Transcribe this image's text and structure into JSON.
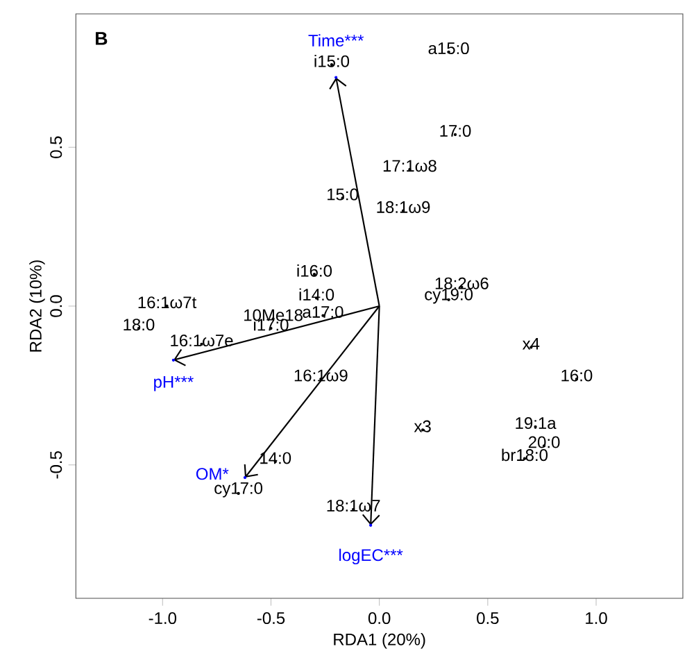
{
  "chart_data": {
    "type": "scatter",
    "title": "B",
    "xlabel": "RDA1 (20%)",
    "ylabel": "RDA2 (10%)",
    "xlim": [
      -1.4,
      1.4
    ],
    "ylim": [
      -0.92,
      0.92
    ],
    "xticks": [
      {
        "value": -1,
        "label": "-1.0"
      },
      {
        "value": -0.5,
        "label": "-0.5"
      },
      {
        "value": 0,
        "label": "0.0"
      },
      {
        "value": 0.5,
        "label": "0.5"
      },
      {
        "value": 1,
        "label": "1.0"
      }
    ],
    "yticks": [
      {
        "value": -0.5,
        "label": "-0.5"
      },
      {
        "value": 0,
        "label": "0.0"
      },
      {
        "value": 0.5,
        "label": "0.5"
      }
    ],
    "grid": false,
    "marker": "circle",
    "series": [
      {
        "color": "#000000",
        "x": [
          -0.22,
          0.32,
          0.35,
          0.14,
          -0.17,
          0.11,
          -0.3,
          -0.29,
          0.38,
          0.32,
          -0.98,
          -0.26,
          -0.49,
          -0.5,
          -1.11,
          -0.82,
          -0.27,
          0.7,
          0.91,
          0.2,
          0.72,
          0.76,
          0.67,
          -0.48,
          -0.65,
          -0.12
        ],
        "values": [
          0.76,
          0.8,
          0.54,
          0.43,
          0.34,
          0.3,
          0.1,
          0.025,
          0.06,
          0.02,
          0.0,
          -0.03,
          -0.04,
          -0.07,
          -0.07,
          -0.12,
          -0.23,
          -0.13,
          -0.23,
          -0.39,
          -0.38,
          -0.44,
          -0.48,
          -0.49,
          -0.59,
          -0.64
        ],
        "value_labels": [
          "i15:0",
          "a15:0",
          "17:0",
          "17:1ω8",
          "15:0",
          "18:1ω9",
          "i16:0",
          "i14:0",
          "18:2ω6",
          "cy19:0",
          "16:1ω7t",
          "a17:0",
          "10Me18",
          "i17:0",
          "18:0",
          "16:1ω7e",
          "16:1ω9",
          "x4",
          "16:0",
          "x3",
          "19:1a",
          "20:0",
          "br18:0",
          "14:0",
          "cy17:0",
          "18:1ω7"
        ]
      },
      {
        "color": "#0000ff",
        "x": [
          -0.2,
          -0.95,
          -0.62,
          -0.04
        ],
        "values": [
          0.72,
          -0.17,
          -0.54,
          -0.69
        ],
        "value_labels": [
          "Time***",
          "pH***",
          "OM*",
          "logEC***"
        ]
      }
    ]
  }
}
